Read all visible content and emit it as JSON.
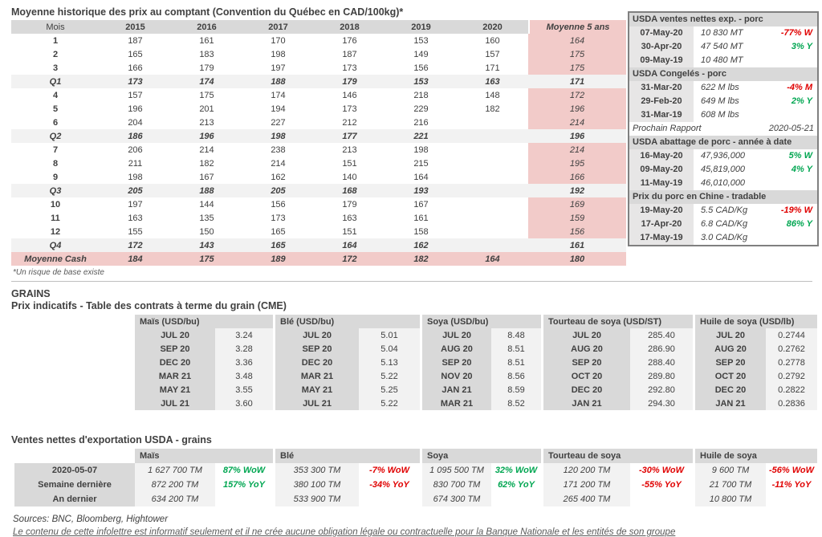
{
  "page": {
    "title": "Moyenne historique des prix au comptant (Convention du Québec en CAD/100kg)*",
    "footnote": "*Un risque de base existe",
    "sources": "Sources: BNC, Bloomberg, Hightower",
    "disclaimer": "Le contenu de cette infolettre est informatif seulement et il ne crée aucune obligation légale ou contractuelle pour la Banque Nationale et les entités de son groupe"
  },
  "colors": {
    "pink": "#f2cbc9",
    "header_gray": "#d9d9d9",
    "light_gray": "#f2f2f2",
    "date_gray": "#e7e6e6",
    "red": "#e00000",
    "green": "#00a651"
  },
  "price_table": {
    "columns": [
      "Mois",
      "2015",
      "2016",
      "2017",
      "2018",
      "2019",
      "2020",
      "Moyenne 5 ans"
    ],
    "rows": [
      {
        "label": "1",
        "type": "month",
        "values": [
          "187",
          "161",
          "170",
          "176",
          "153",
          "160"
        ],
        "avg": "164"
      },
      {
        "label": "2",
        "type": "month",
        "values": [
          "165",
          "183",
          "198",
          "187",
          "149",
          "157"
        ],
        "avg": "175"
      },
      {
        "label": "3",
        "type": "month",
        "values": [
          "166",
          "179",
          "197",
          "173",
          "156",
          "171"
        ],
        "avg": "175"
      },
      {
        "label": "Q1",
        "type": "quarter",
        "values": [
          "173",
          "174",
          "188",
          "179",
          "153",
          "163"
        ],
        "avg": "171"
      },
      {
        "label": "4",
        "type": "month",
        "values": [
          "157",
          "175",
          "174",
          "146",
          "218",
          "148"
        ],
        "avg": "172"
      },
      {
        "label": "5",
        "type": "month",
        "values": [
          "196",
          "201",
          "194",
          "173",
          "229",
          "182"
        ],
        "avg": "196"
      },
      {
        "label": "6",
        "type": "month",
        "values": [
          "204",
          "213",
          "227",
          "212",
          "216",
          ""
        ],
        "avg": "214"
      },
      {
        "label": "Q2",
        "type": "quarter",
        "values": [
          "186",
          "196",
          "198",
          "177",
          "221",
          ""
        ],
        "avg": "196"
      },
      {
        "label": "7",
        "type": "month",
        "values": [
          "206",
          "214",
          "238",
          "213",
          "198",
          ""
        ],
        "avg": "214"
      },
      {
        "label": "8",
        "type": "month",
        "values": [
          "211",
          "182",
          "214",
          "151",
          "215",
          ""
        ],
        "avg": "195"
      },
      {
        "label": "9",
        "type": "month",
        "values": [
          "198",
          "167",
          "162",
          "140",
          "164",
          ""
        ],
        "avg": "166"
      },
      {
        "label": "Q3",
        "type": "quarter",
        "values": [
          "205",
          "188",
          "205",
          "168",
          "193",
          ""
        ],
        "avg": "192"
      },
      {
        "label": "10",
        "type": "month",
        "values": [
          "197",
          "144",
          "156",
          "179",
          "167",
          ""
        ],
        "avg": "169"
      },
      {
        "label": "11",
        "type": "month",
        "values": [
          "163",
          "135",
          "173",
          "163",
          "161",
          ""
        ],
        "avg": "159"
      },
      {
        "label": "12",
        "type": "month",
        "values": [
          "155",
          "150",
          "165",
          "151",
          "158",
          ""
        ],
        "avg": "156"
      },
      {
        "label": "Q4",
        "type": "quarter",
        "values": [
          "172",
          "143",
          "165",
          "164",
          "162",
          ""
        ],
        "avg": "161"
      },
      {
        "label": "Moyenne Cash",
        "type": "cash",
        "values": [
          "184",
          "175",
          "189",
          "172",
          "182",
          "164"
        ],
        "avg": "180"
      }
    ]
  },
  "sidebar": {
    "blocks": [
      {
        "type": "section",
        "title": "USDA ventes nettes exp. - porc",
        "rows": [
          {
            "date": "07-May-20",
            "value": "10 830  MT",
            "pct": "-77% W",
            "trend": "red"
          },
          {
            "date": "30-Apr-20",
            "value": "47 540  MT",
            "pct": "3% Y",
            "trend": "green"
          },
          {
            "date": "09-May-19",
            "value": "10 480  MT",
            "pct": "",
            "trend": ""
          }
        ]
      },
      {
        "type": "section",
        "title": "USDA Congelés - porc",
        "rows": [
          {
            "date": "31-Mar-20",
            "value": "622 M lbs",
            "pct": "-4% M",
            "trend": "red"
          },
          {
            "date": "29-Feb-20",
            "value": "649 M lbs",
            "pct": "2% Y",
            "trend": "green"
          },
          {
            "date": "31-Mar-19",
            "value": "608 M lbs",
            "pct": "",
            "trend": ""
          }
        ]
      },
      {
        "type": "note",
        "label": "Prochain Rapport",
        "value": "2020-05-21"
      },
      {
        "type": "section",
        "title": "USDA abattage de porc - année à date",
        "rows": [
          {
            "date": "16-May-20",
            "value": "47,936,000",
            "pct": "5% W",
            "trend": "green"
          },
          {
            "date": "09-May-20",
            "value": "45,819,000",
            "pct": "4% Y",
            "trend": "green"
          },
          {
            "date": "11-May-19",
            "value": "46,010,000",
            "pct": "",
            "trend": ""
          }
        ]
      },
      {
        "type": "section",
        "title": "Prix du porc en Chine - tradable",
        "rows": [
          {
            "date": "19-May-20",
            "value": "5.5 CAD/Kg",
            "pct": "-19% W",
            "trend": "red"
          },
          {
            "date": "17-Apr-20",
            "value": "6.8 CAD/Kg",
            "pct": "86% Y",
            "trend": "green"
          },
          {
            "date": "17-May-19",
            "value": "3.0 CAD/Kg",
            "pct": "",
            "trend": ""
          }
        ]
      }
    ]
  },
  "grains": {
    "heading": "GRAINS",
    "subheading": "Prix indicatifs - Table des contrats à terme du grain (CME)",
    "cme_groups": [
      {
        "title": "Maïs (USD/bu)",
        "rows": [
          [
            "JUL 20",
            "3.24"
          ],
          [
            "SEP 20",
            "3.28"
          ],
          [
            "DEC 20",
            "3.36"
          ],
          [
            "MAR 21",
            "3.48"
          ],
          [
            "MAY 21",
            "3.55"
          ],
          [
            "JUL 21",
            "3.60"
          ]
        ]
      },
      {
        "title": "Blé (USD/bu)",
        "rows": [
          [
            "JUL 20",
            "5.01"
          ],
          [
            "SEP 20",
            "5.04"
          ],
          [
            "DEC 20",
            "5.13"
          ],
          [
            "MAR 21",
            "5.22"
          ],
          [
            "MAY 21",
            "5.25"
          ],
          [
            "JUL 21",
            "5.22"
          ]
        ]
      },
      {
        "title": "Soya (USD/bu)",
        "rows": [
          [
            "JUL 20",
            "8.48"
          ],
          [
            "AUG 20",
            "8.51"
          ],
          [
            "SEP 20",
            "8.51"
          ],
          [
            "NOV 20",
            "8.56"
          ],
          [
            "JAN 21",
            "8.59"
          ],
          [
            "MAR 21",
            "8.52"
          ]
        ]
      },
      {
        "title": "Tourteau de soya (USD/ST)",
        "rows": [
          [
            "JUL 20",
            "285.40"
          ],
          [
            "AUG 20",
            "286.90"
          ],
          [
            "SEP 20",
            "288.40"
          ],
          [
            "OCT 20",
            "289.80"
          ],
          [
            "DEC 20",
            "292.80"
          ],
          [
            "JAN 21",
            "294.30"
          ]
        ]
      },
      {
        "title": "Huile de soya (USD/lb)",
        "rows": [
          [
            "JUL 20",
            "0.2744"
          ],
          [
            "AUG 20",
            "0.2762"
          ],
          [
            "SEP 20",
            "0.2778"
          ],
          [
            "OCT 20",
            "0.2792"
          ],
          [
            "DEC 20",
            "0.2822"
          ],
          [
            "JAN 21",
            "0.2836"
          ]
        ]
      }
    ]
  },
  "exports": {
    "title": "Ventes nettes d'exportation USDA - grains",
    "row_labels": [
      "2020-05-07",
      "Semaine dernière",
      "An dernier"
    ],
    "groups": [
      {
        "title": "Maïs",
        "cells": [
          {
            "value": "1 627 700 TM",
            "pct": "87% WoW",
            "trend": "green"
          },
          {
            "value": "872 200 TM",
            "pct": "157% YoY",
            "trend": "green"
          },
          {
            "value": "634 200 TM",
            "pct": "",
            "trend": ""
          }
        ]
      },
      {
        "title": "Blé",
        "cells": [
          {
            "value": "353 300 TM",
            "pct": "-7% WoW",
            "trend": "red"
          },
          {
            "value": "380 100 TM",
            "pct": "-34% YoY",
            "trend": "red"
          },
          {
            "value": "533 900 TM",
            "pct": "",
            "trend": ""
          }
        ]
      },
      {
        "title": "Soya",
        "cells": [
          {
            "value": "1 095 500 TM",
            "pct": "32% WoW",
            "trend": "green"
          },
          {
            "value": "830 700 TM",
            "pct": "62% YoY",
            "trend": "green"
          },
          {
            "value": "674 300 TM",
            "pct": "",
            "trend": ""
          }
        ]
      },
      {
        "title": "Tourteau de soya",
        "cells": [
          {
            "value": "120 200 TM",
            "pct": "-30% WoW",
            "trend": "red"
          },
          {
            "value": "171 200 TM",
            "pct": "-55% YoY",
            "trend": "red"
          },
          {
            "value": "265 400 TM",
            "pct": "",
            "trend": ""
          }
        ]
      },
      {
        "title": "Huile de soya",
        "cells": [
          {
            "value": "9 600 TM",
            "pct": "-56% WoW",
            "trend": "red"
          },
          {
            "value": "21 700 TM",
            "pct": "-11% YoY",
            "trend": "red"
          },
          {
            "value": "10 800 TM",
            "pct": "",
            "trend": ""
          }
        ]
      }
    ]
  }
}
